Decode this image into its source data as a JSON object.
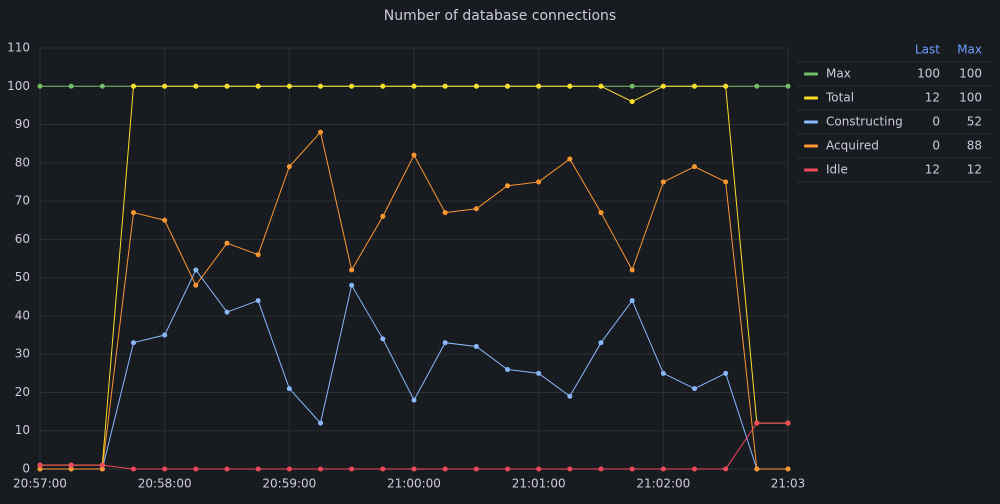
{
  "chart_data": {
    "type": "line",
    "title": "Number of database connections",
    "x": [
      "20:57:00",
      "20:57:15",
      "20:57:30",
      "20:57:45",
      "20:58:00",
      "20:58:15",
      "20:58:30",
      "20:58:45",
      "20:59:00",
      "20:59:15",
      "20:59:30",
      "20:59:45",
      "21:00:00",
      "21:00:15",
      "21:00:30",
      "21:00:45",
      "21:01:00",
      "21:01:15",
      "21:01:30",
      "21:01:45",
      "21:02:00",
      "21:02:15",
      "21:02:30",
      "21:02:45",
      "21:03:00"
    ],
    "xlim": [
      "20:57:00",
      "21:03:00"
    ],
    "xticks": [
      "20:57:00",
      "20:58:00",
      "20:59:00",
      "21:00:00",
      "21:01:00",
      "21:02:00",
      {
        "value": "21:03:00",
        "label": "21:03"
      }
    ],
    "ylim": [
      0,
      110
    ],
    "yticks": [
      0,
      10,
      20,
      30,
      40,
      50,
      60,
      70,
      80,
      90,
      100,
      110
    ],
    "grid": true,
    "legend_columns": [
      "Last",
      "Max"
    ],
    "series": [
      {
        "name": "Max",
        "color": "#73bf69",
        "values": [
          100,
          100,
          100,
          100,
          100,
          100,
          100,
          100,
          100,
          100,
          100,
          100,
          100,
          100,
          100,
          100,
          100,
          100,
          100,
          100,
          100,
          100,
          100,
          100,
          100
        ],
        "last": 100,
        "max": 100
      },
      {
        "name": "Total",
        "color": "#fade2a",
        "values": [
          1,
          1,
          1,
          100,
          100,
          100,
          100,
          100,
          100,
          100,
          100,
          100,
          100,
          100,
          100,
          100,
          100,
          100,
          100,
          96,
          100,
          100,
          100,
          12,
          12
        ],
        "last": 12,
        "max": 100
      },
      {
        "name": "Constructing",
        "color": "#8ab8ff",
        "values": [
          0,
          0,
          0,
          33,
          35,
          52,
          41,
          44,
          21,
          12,
          48,
          34,
          18,
          33,
          32,
          26,
          25,
          19,
          33,
          44,
          25,
          21,
          25,
          0,
          0
        ],
        "last": 0,
        "max": 52
      },
      {
        "name": "Acquired",
        "color": "#ff9830",
        "values": [
          0,
          0,
          0,
          67,
          65,
          48,
          59,
          56,
          79,
          88,
          52,
          66,
          82,
          67,
          68,
          74,
          75,
          81,
          67,
          52,
          75,
          79,
          75,
          0,
          0
        ],
        "last": 0,
        "max": 88
      },
      {
        "name": "Idle",
        "color": "#f2495c",
        "values": [
          1,
          1,
          1,
          0,
          0,
          0,
          0,
          0,
          0,
          0,
          0,
          0,
          0,
          0,
          0,
          0,
          0,
          0,
          0,
          0,
          0,
          0,
          0,
          12,
          12
        ],
        "last": 12,
        "max": 12
      }
    ]
  }
}
